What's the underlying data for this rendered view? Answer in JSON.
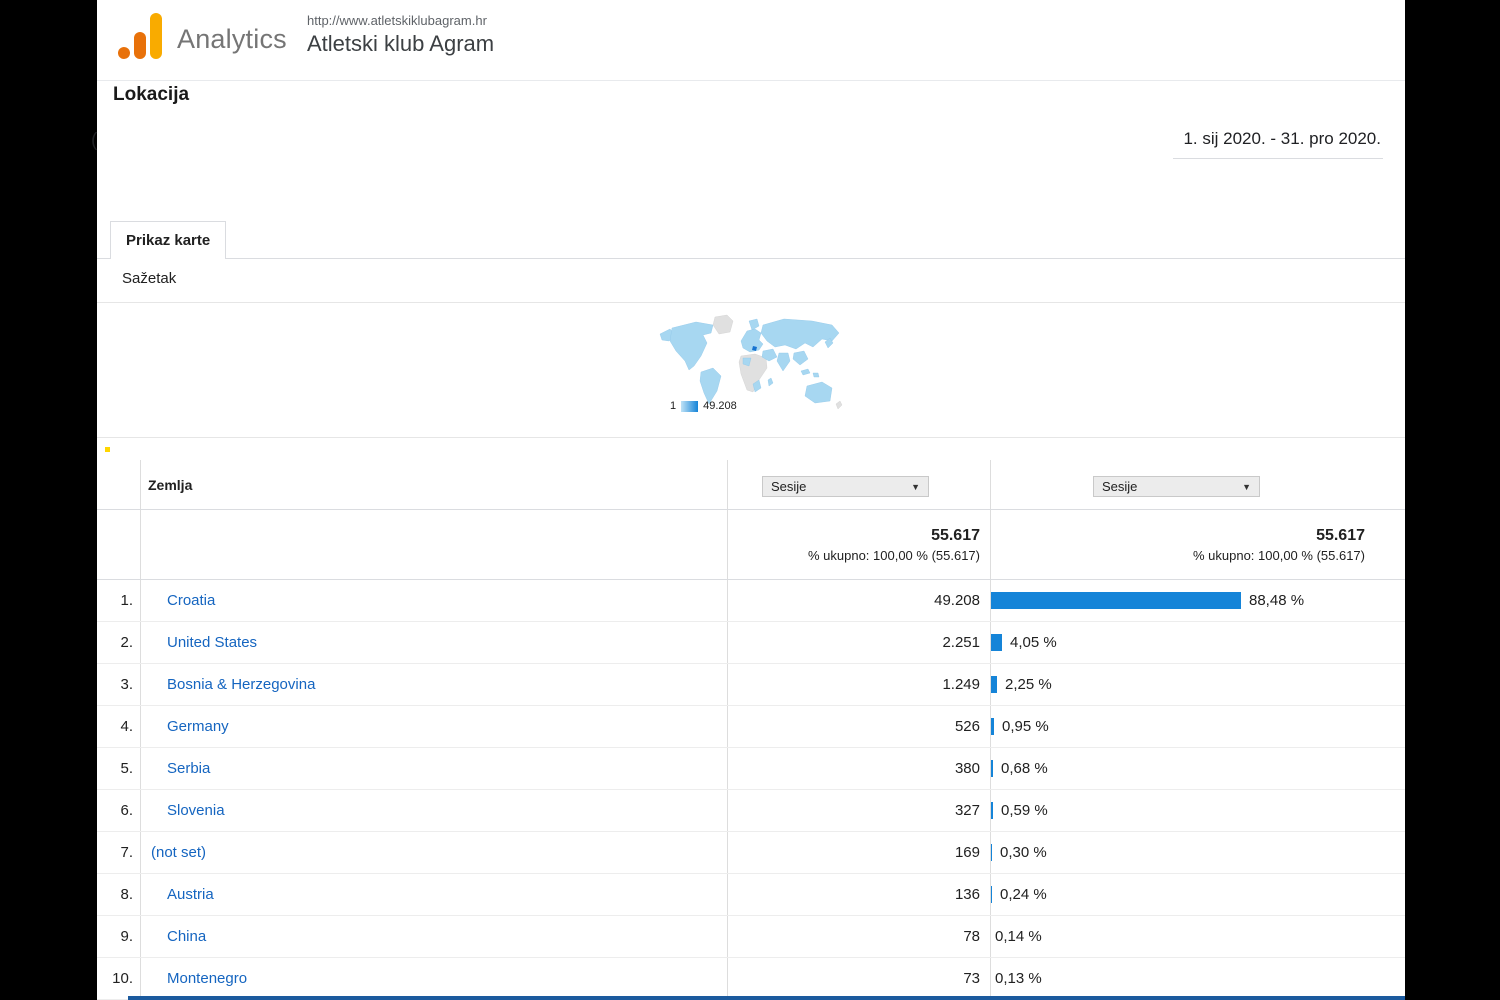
{
  "header": {
    "app_name": "Analytics",
    "site_url": "http://www.atletskiklubagram.hr",
    "site_name": "Atletski klub Agram"
  },
  "report": {
    "title": "Lokacija",
    "date_range": "1. sij 2020. - 31. pro 2020.",
    "tab_label": "Prikaz karte",
    "summary_label": "Sažetak",
    "left_edge_fragment": "("
  },
  "map": {
    "legend_min": "1",
    "legend_max": "49.208"
  },
  "table": {
    "country_header": "Zemlja",
    "metric_selector": "Sesije",
    "metric_selector_2": "Sesije",
    "dropdown_arrow": "▼",
    "totals": {
      "sessions": "55.617",
      "percent_line": "% ukupno: 100,00 % (55.617)"
    },
    "rows": [
      {
        "rank": "1.",
        "country": "Croatia",
        "sessions": "49.208",
        "pct": 88.48,
        "pct_label": "88,48 %"
      },
      {
        "rank": "2.",
        "country": "United States",
        "sessions": "2.251",
        "pct": 4.05,
        "pct_label": "4,05 %"
      },
      {
        "rank": "3.",
        "country": "Bosnia & Herzegovina",
        "sessions": "1.249",
        "pct": 2.25,
        "pct_label": "2,25 %"
      },
      {
        "rank": "4.",
        "country": "Germany",
        "sessions": "526",
        "pct": 0.95,
        "pct_label": "0,95 %"
      },
      {
        "rank": "5.",
        "country": "Serbia",
        "sessions": "380",
        "pct": 0.68,
        "pct_label": "0,68 %"
      },
      {
        "rank": "6.",
        "country": "Slovenia",
        "sessions": "327",
        "pct": 0.59,
        "pct_label": "0,59 %"
      },
      {
        "rank": "7.",
        "country": "(not set)",
        "sessions": "169",
        "pct": 0.3,
        "pct_label": "0,30 %"
      },
      {
        "rank": "8.",
        "country": "Austria",
        "sessions": "136",
        "pct": 0.24,
        "pct_label": "0,24 %"
      },
      {
        "rank": "9.",
        "country": "China",
        "sessions": "78",
        "pct": 0.14,
        "pct_label": "0,14 %"
      },
      {
        "rank": "10.",
        "country": "Montenegro",
        "sessions": "73",
        "pct": 0.13,
        "pct_label": "0,13 %"
      }
    ]
  },
  "colors": {
    "bar_blue": "#1584d8",
    "link_blue": "#1565c0",
    "logo_amber": "#f9ab00",
    "logo_orange": "#e8710a",
    "map_land": "#a7d7f1",
    "map_nodata": "#e0e0e0",
    "map_highlight": "#1673d0",
    "bottom_strip": "#1b5a9e"
  }
}
